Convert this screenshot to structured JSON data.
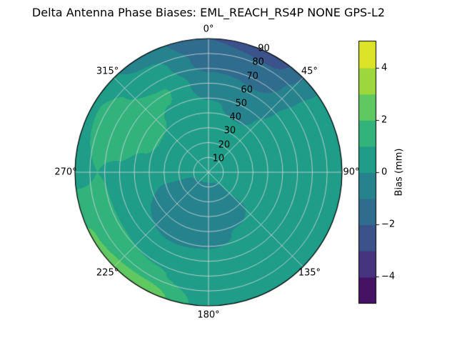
{
  "colors": {
    "background": "#ffffff",
    "grid_line": "#d9d9d9",
    "spine": "#000000",
    "text": "#000000"
  },
  "chart_data": {
    "type": "heatmap",
    "projection": "polar",
    "title": "Delta Antenna Phase Biases: EML_REACH_RS4P  NONE GPS-L2",
    "theta_direction": "clockwise",
    "theta_zero_location": "top",
    "theta_ticks_deg": [
      0,
      45,
      90,
      135,
      180,
      225,
      270,
      315
    ],
    "theta_tick_labels": [
      "0°",
      "45°",
      "90°",
      "135°",
      "180°",
      "225°",
      "270°",
      "315°"
    ],
    "radial_ticks": [
      10,
      20,
      30,
      40,
      50,
      60,
      70,
      80,
      90
    ],
    "radial_range": [
      0,
      90
    ],
    "radial_label_angle_deg": 22.5,
    "colorbar": {
      "label": "Bias (mm)",
      "ticks": [
        -4,
        -2,
        0,
        2,
        4
      ],
      "tick_labels": [
        "−4",
        "−2",
        "0",
        "2",
        "4"
      ],
      "range": [
        -5,
        5
      ],
      "levels": [
        -5,
        -4,
        -3,
        -2,
        -1,
        0,
        1,
        2,
        3,
        4,
        5
      ],
      "colormap": "viridis",
      "viridis_stops": [
        "#440154",
        "#482878",
        "#3e4a89",
        "#31688e",
        "#26828e",
        "#1f9e89",
        "#35b779",
        "#6ece58",
        "#b5de2b",
        "#fde725"
      ]
    },
    "grid": {
      "azimuth_deg": [
        0,
        30,
        60,
        90,
        120,
        150,
        180,
        210,
        240,
        270,
        300,
        330,
        360
      ],
      "radius": [
        0,
        15,
        30,
        45,
        60,
        75,
        90
      ],
      "bias_mm": [
        [
          0.4,
          0.4,
          0.4,
          0.4,
          0.4,
          0.4,
          0.4,
          0.4,
          0.4,
          0.4,
          0.4,
          0.4,
          0.4
        ],
        [
          0.5,
          0.4,
          0.4,
          0.5,
          0.4,
          -0.3,
          -0.5,
          -0.4,
          -0.2,
          0.2,
          0.4,
          0.5,
          0.5
        ],
        [
          0.4,
          0.3,
          0.4,
          0.6,
          0.3,
          -0.5,
          -0.7,
          -0.6,
          -0.3,
          0.3,
          0.6,
          0.6,
          0.4
        ],
        [
          0.1,
          -0.2,
          0.4,
          0.7,
          0.5,
          0.1,
          -0.3,
          -0.4,
          0.0,
          0.6,
          1.3,
          0.9,
          0.1
        ],
        [
          -0.6,
          -0.9,
          0.4,
          0.8,
          0.6,
          0.5,
          0.4,
          0.3,
          0.5,
          0.9,
          1.6,
          1.1,
          -0.6
        ],
        [
          -1.4,
          -1.6,
          0.3,
          0.8,
          0.7,
          0.6,
          0.5,
          1.1,
          1.4,
          1.0,
          1.3,
          0.4,
          -1.4
        ],
        [
          -2.0,
          -2.4,
          0.2,
          0.9,
          0.8,
          0.7,
          0.6,
          2.6,
          2.1,
          0.8,
          0.9,
          -0.5,
          -2.0
        ]
      ]
    }
  }
}
